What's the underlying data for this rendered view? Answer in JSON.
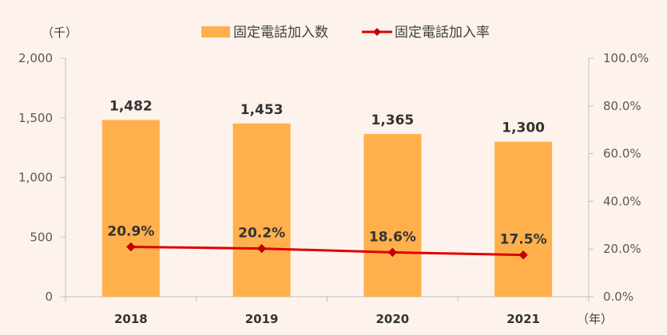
{
  "chart_data": {
    "type": "bar",
    "categories": [
      "2018",
      "2019",
      "2020",
      "2021"
    ],
    "series": [
      {
        "name": "固定電話加入数",
        "type": "bar",
        "axis": "left",
        "values": [
          1482,
          1453,
          1365,
          1300
        ],
        "labels": [
          "1,482",
          "1,453",
          "1,365",
          "1,300"
        ],
        "color": "#ffb04c"
      },
      {
        "name": "固定電話加入率",
        "type": "line",
        "axis": "right",
        "values": [
          20.9,
          20.2,
          18.6,
          17.5
        ],
        "labels": [
          "20.9%",
          "20.2%",
          "18.6%",
          "17.5%"
        ],
        "color": "#e00000"
      }
    ],
    "y_left": {
      "unit": "（千）",
      "ylim": [
        0,
        2000
      ],
      "ticks": [
        0,
        500,
        1000,
        1500,
        2000
      ],
      "tick_labels": [
        "0",
        "500",
        "1,000",
        "1,500",
        "2,000"
      ]
    },
    "y_right": {
      "ylim": [
        0,
        100
      ],
      "ticks": [
        0,
        20,
        40,
        60,
        80,
        100
      ],
      "tick_labels": [
        "0.0%",
        "20.0%",
        "40.0%",
        "60.0%",
        "80.0%",
        "100.0%"
      ]
    },
    "x_unit": "（年）",
    "legend_position": "top",
    "grid": false,
    "background": "#fdf3ec"
  }
}
